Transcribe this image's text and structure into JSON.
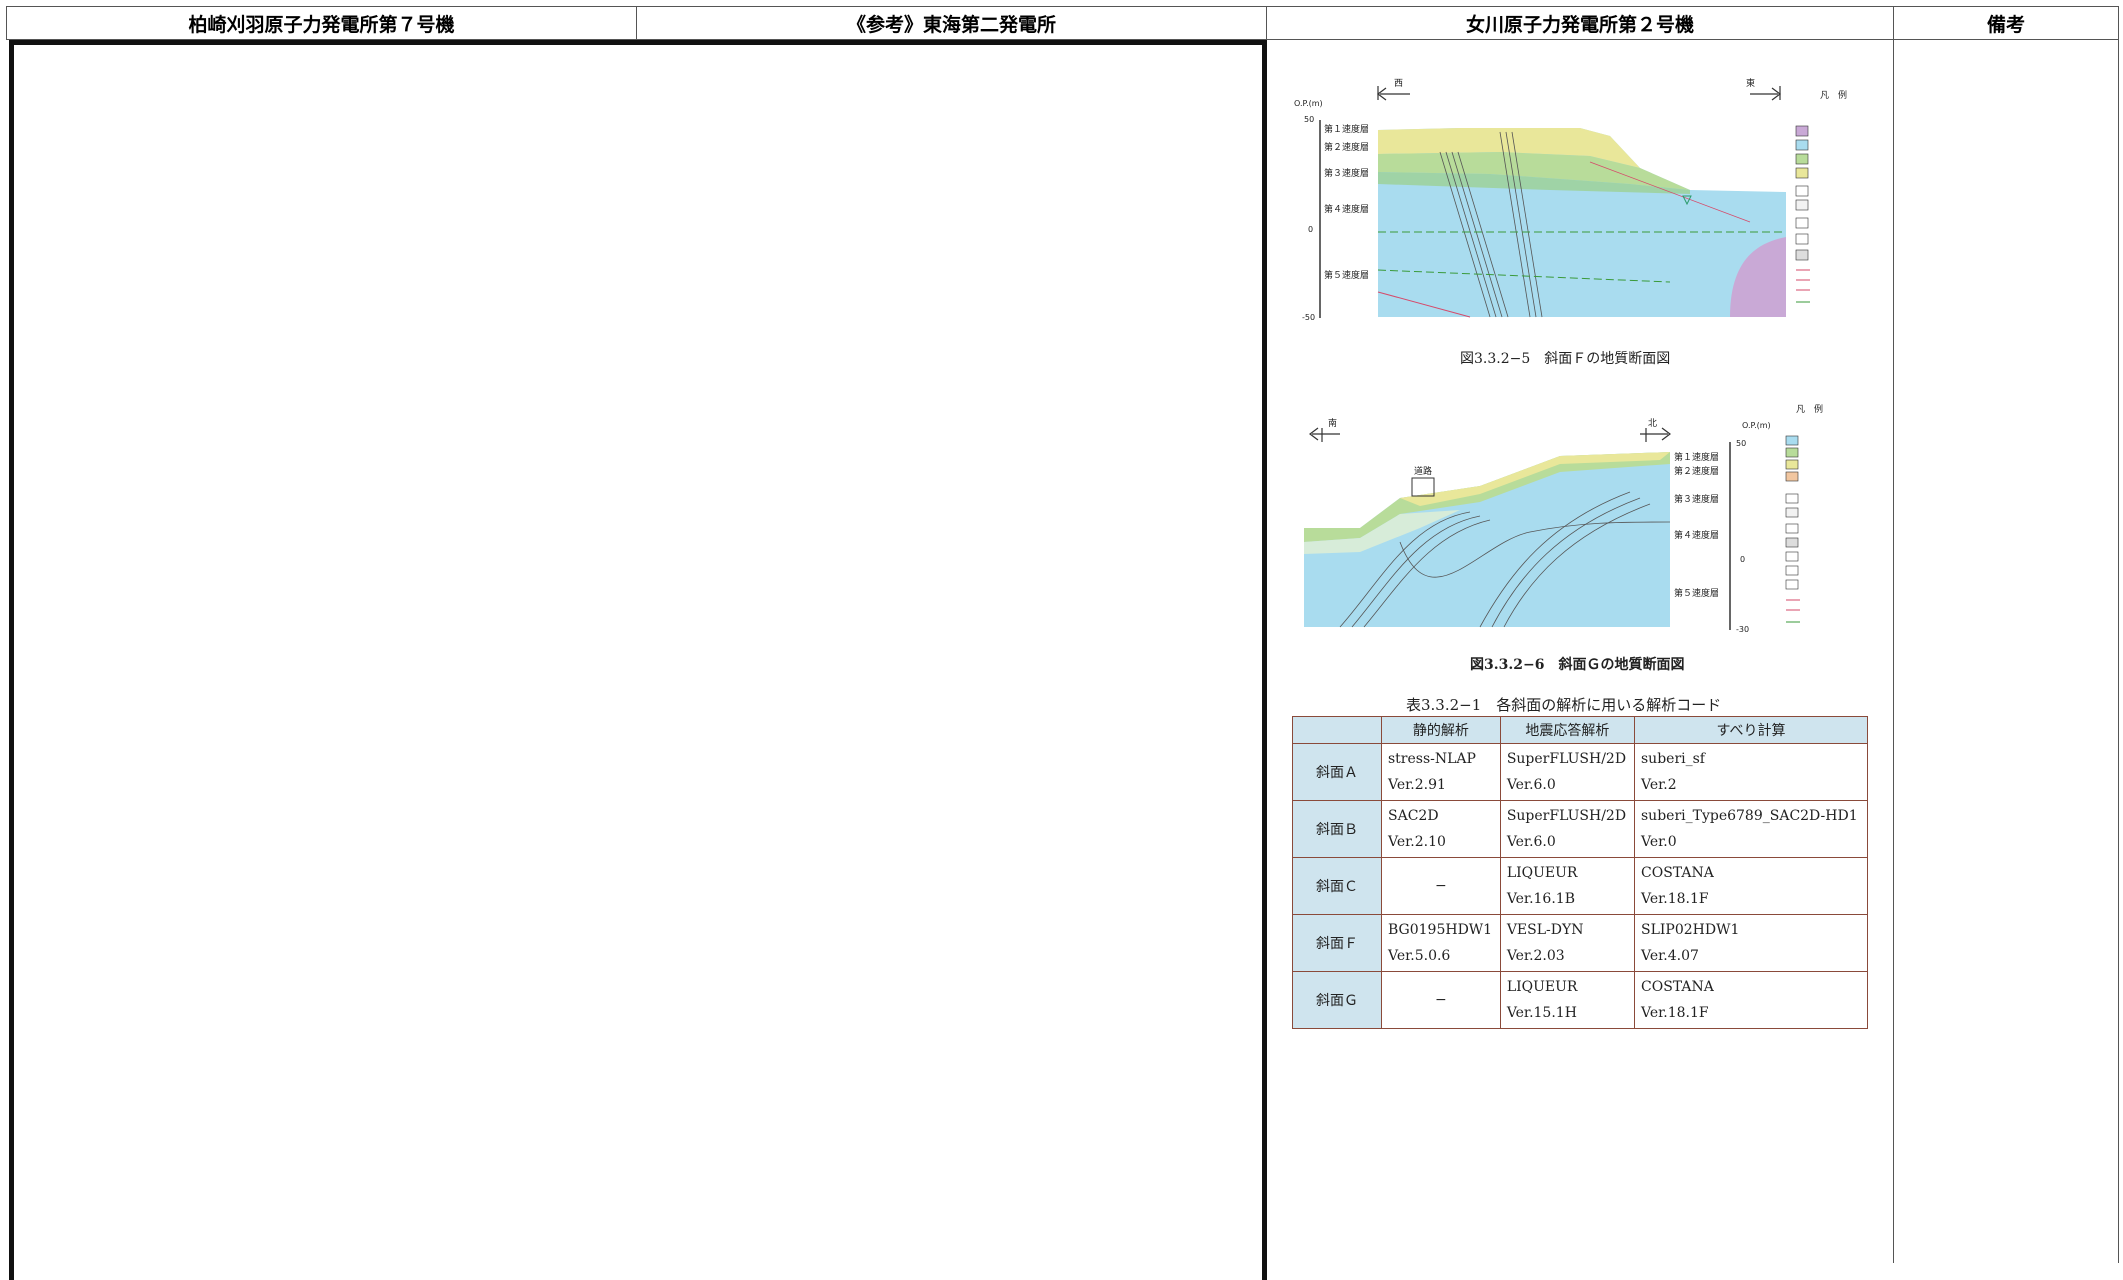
{
  "header": {
    "col1": "柏崎刈羽原子力発電所第７号機",
    "col2": "《参考》東海第二発電所",
    "col3": "女川原子力発電所第２号機",
    "col4": "備考"
  },
  "figure_f": {
    "caption": "図3.3.2−5　斜面Ｆの地質断面図",
    "dir_west": "西",
    "dir_east": "東",
    "axis_label": "O.P.(m)",
    "ticks": [
      "50",
      "0",
      "-50"
    ],
    "layers": [
      "第１速度層",
      "第２速度層",
      "第３速度層",
      "第４速度層",
      "第５速度層"
    ],
    "legend_title": "凡　例"
  },
  "figure_g": {
    "caption": "図3.3.2−6　斜面Ｇの地質断面図",
    "dir_south": "南",
    "dir_north": "北",
    "axis_label": "O.P.(m)",
    "ticks": [
      "50",
      "0",
      "-30"
    ],
    "layers": [
      "第１速度層",
      "第２速度層",
      "第３速度層",
      "第４速度層",
      "第５速度層"
    ],
    "road_label": "道路",
    "legend_title": "凡　例"
  },
  "table": {
    "caption": "表3.3.2−1　各斜面の解析に用いる解析コード",
    "headers": [
      "",
      "静的解析",
      "地震応答解析",
      "すべり計算"
    ],
    "rows": [
      {
        "slope": "斜面Ａ",
        "static": [
          "stress-NLAP",
          "Ver.2.91"
        ],
        "seismic": [
          "SuperFLUSH/2D",
          "Ver.6.0"
        ],
        "slip": [
          "suberi_sf",
          "Ver.2"
        ]
      },
      {
        "slope": "斜面Ｂ",
        "static": [
          "SAC2D",
          "Ver.2.10"
        ],
        "seismic": [
          "SuperFLUSH/2D",
          "Ver.6.0"
        ],
        "slip": [
          "suberi_Type6789_SAC2D-HD1",
          "Ver.0"
        ]
      },
      {
        "slope": "斜面Ｃ",
        "static": [
          "−",
          ""
        ],
        "seismic": [
          "LIQUEUR",
          "Ver.16.1B"
        ],
        "slip": [
          "COSTANA",
          "Ver.18.1F"
        ]
      },
      {
        "slope": "斜面Ｆ",
        "static": [
          "BG0195HDW1",
          "Ver.5.0.6"
        ],
        "seismic": [
          "VESL-DYN",
          "Ver.2.03"
        ],
        "slip": [
          "SLIP02HDW1",
          "Ver.4.07"
        ]
      },
      {
        "slope": "斜面Ｇ",
        "static": [
          "−",
          ""
        ],
        "seismic": [
          "LIQUEUR",
          "Ver.15.1H"
        ],
        "slip": [
          "COSTANA",
          "Ver.18.1F"
        ]
      }
    ]
  }
}
